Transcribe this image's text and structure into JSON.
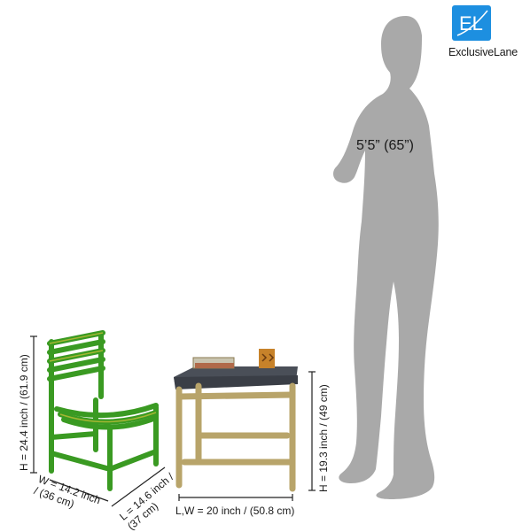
{
  "brand": {
    "name": "ExclusiveLane",
    "mark": "EL",
    "color": "#1d8fe0"
  },
  "figure": {
    "height_label": "5’5” (65”)"
  },
  "chair": {
    "height_label": "H = 24.4 inch / (61.9 cm)",
    "width_label": "W = 14.2 inch / (36 cm)",
    "length_label": "L = 14.6 inch / (37 cm)",
    "color": "#3a9a22"
  },
  "table": {
    "length_width_label": "L,W = 20 inch / (50.8 cm)",
    "height_label": "H = 19.3 inch / (49 cm)",
    "top_color": "#4a4f58",
    "frame_color": "#b8a46a"
  }
}
